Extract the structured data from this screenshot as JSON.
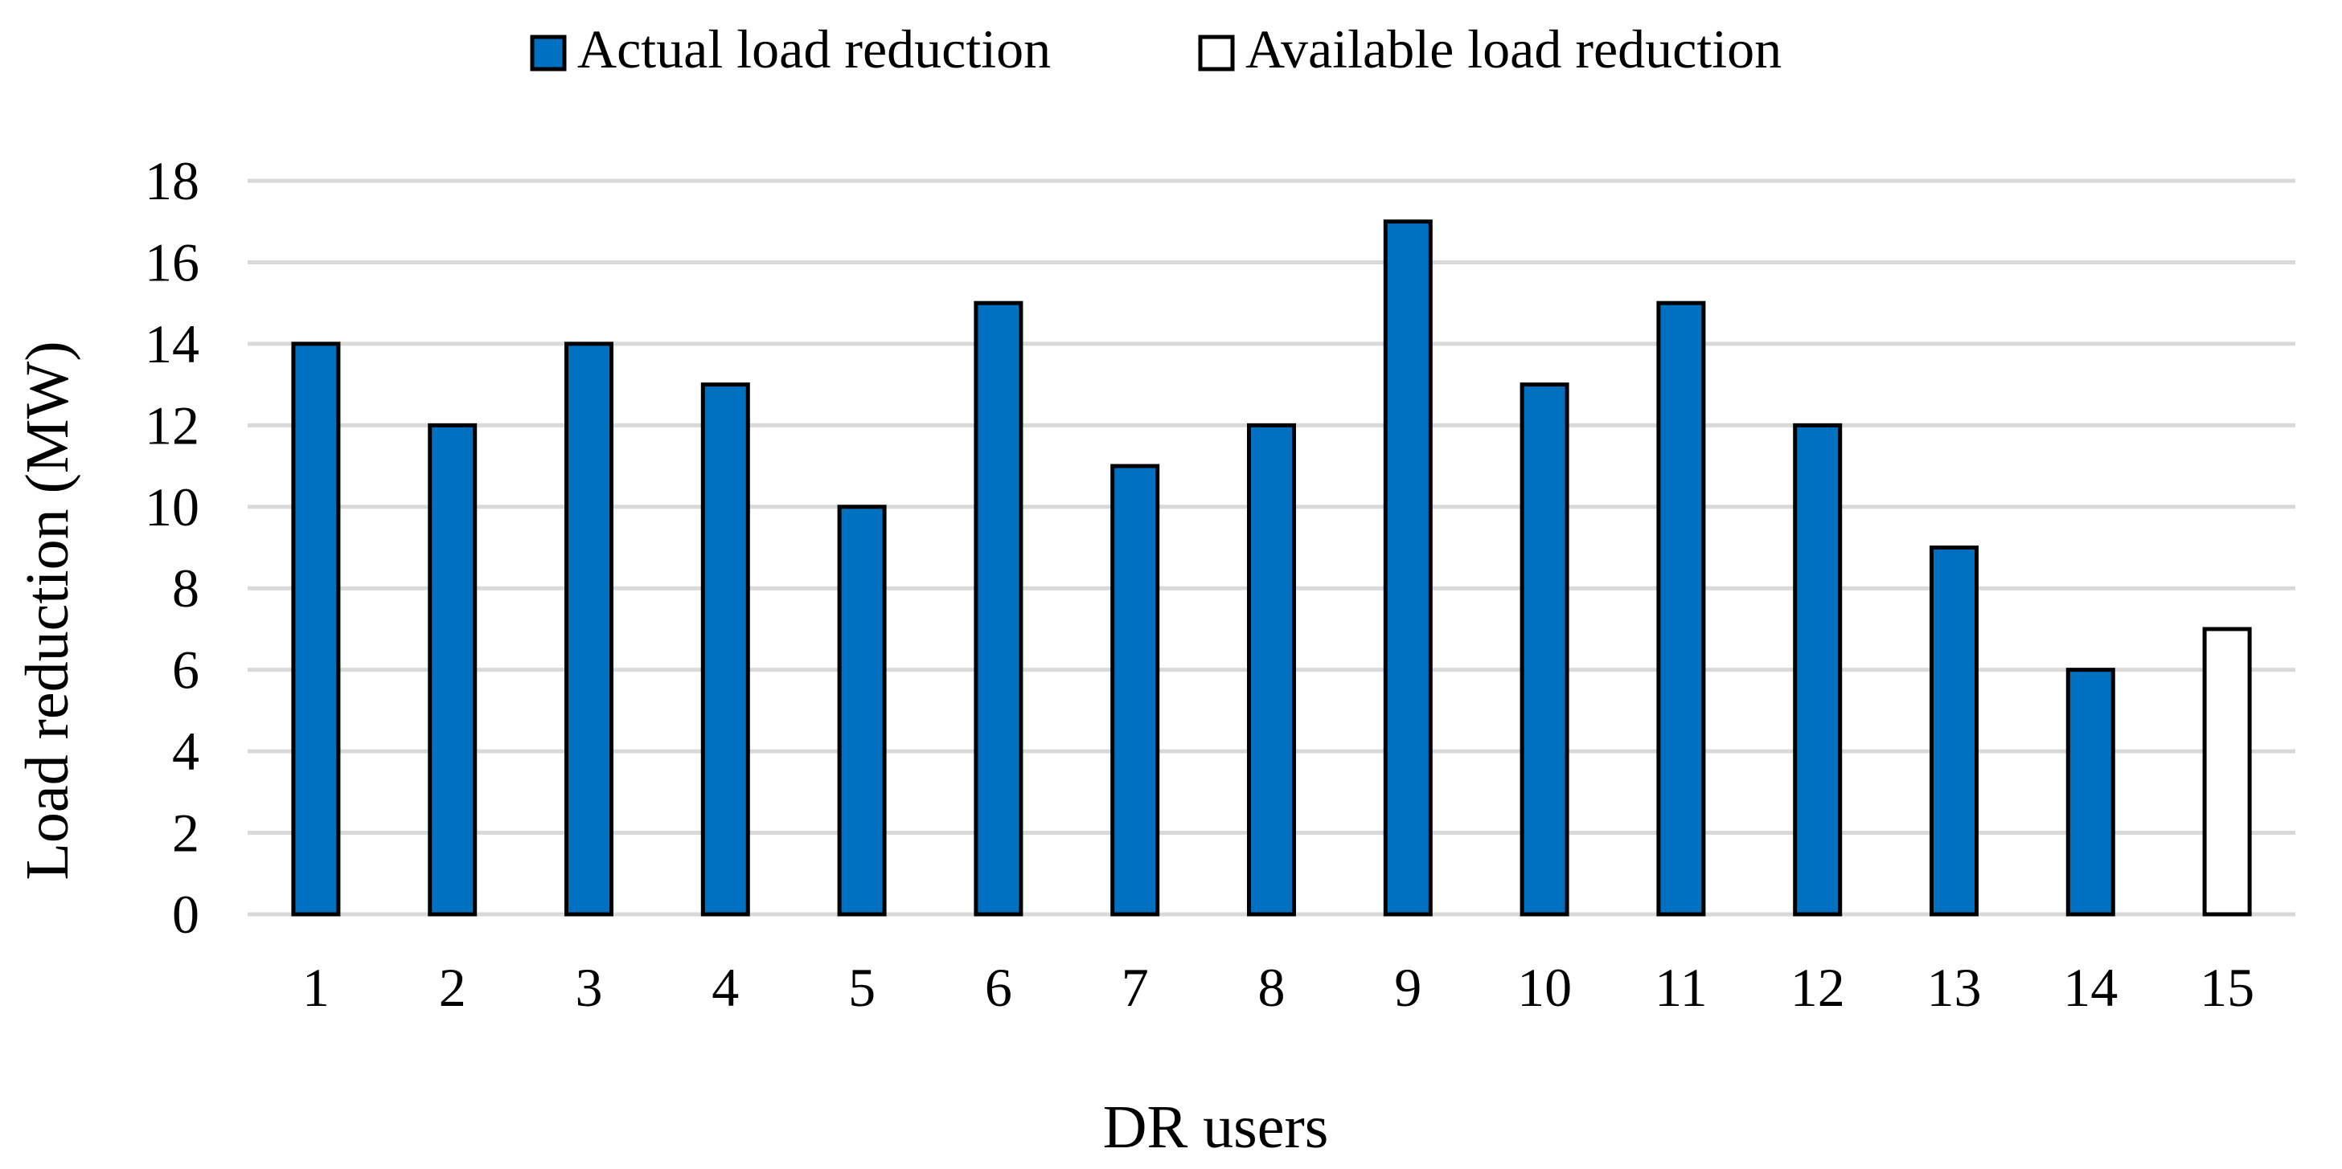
{
  "chart_data": {
    "type": "bar",
    "title": "",
    "xlabel": "DR users",
    "ylabel": "Load reduction (MW)",
    "ylim": [
      0,
      18
    ],
    "yticks": [
      0,
      2,
      4,
      6,
      8,
      10,
      12,
      14,
      16,
      18
    ],
    "grid": true,
    "legend_position": "top",
    "categories": [
      "1",
      "2",
      "3",
      "4",
      "5",
      "6",
      "7",
      "8",
      "9",
      "10",
      "11",
      "12",
      "13",
      "14",
      "15"
    ],
    "series": [
      {
        "name": "Actual load reduction",
        "color": "#0070c0",
        "values": [
          14,
          12,
          14,
          13,
          10,
          15,
          11,
          12,
          17,
          13,
          15,
          12,
          9,
          6,
          null
        ]
      },
      {
        "name": "Available load reduction",
        "color": "#ffffff",
        "values": [
          null,
          null,
          null,
          null,
          null,
          null,
          null,
          null,
          null,
          null,
          null,
          null,
          null,
          null,
          7
        ]
      }
    ]
  }
}
